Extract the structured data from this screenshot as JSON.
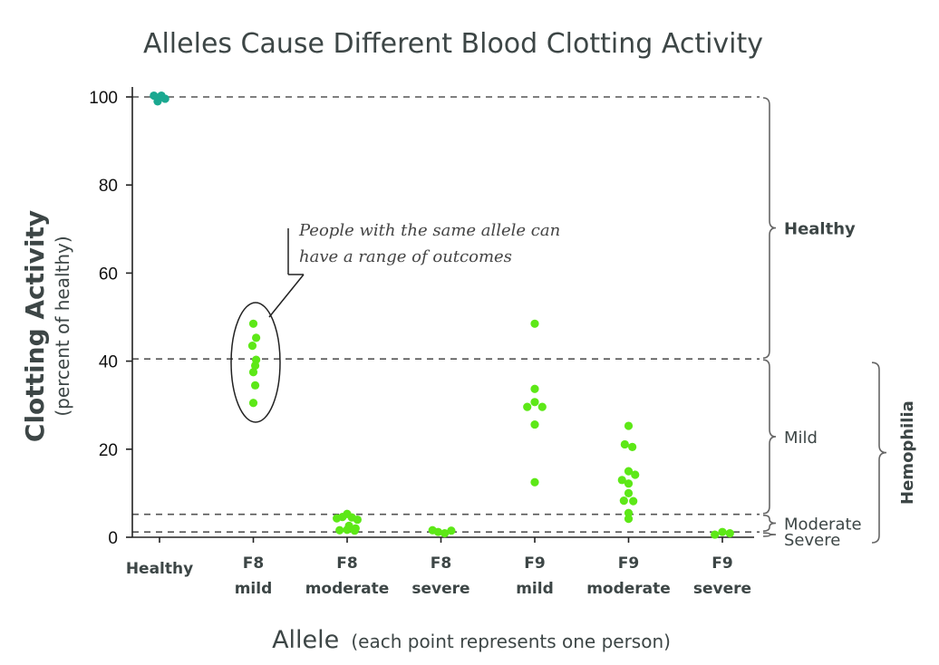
{
  "chart_data": {
    "type": "scatter",
    "title": "Alleles Cause Different Blood Clotting Activity",
    "ylabel": "Clotting Activity",
    "ylabel_sub": "(percent of healthy)",
    "xlabel": "Allele",
    "xlabel_sub": "(each point represents one person)",
    "ylim": [
      0,
      100
    ],
    "yticks": [
      0,
      20,
      40,
      60,
      80,
      100
    ],
    "grid": false,
    "categories": [
      {
        "line1": "Healthy",
        "line2": ""
      },
      {
        "line1": "F8",
        "line2": "mild"
      },
      {
        "line1": "F8",
        "line2": "moderate"
      },
      {
        "line1": "F8",
        "line2": "severe"
      },
      {
        "line1": "F9",
        "line2": "mild"
      },
      {
        "line1": "F9",
        "line2": "moderate"
      },
      {
        "line1": "F9",
        "line2": "severe"
      }
    ],
    "reference_lines": [
      100,
      40.5,
      5.2,
      1.2
    ],
    "bands": [
      {
        "label": "Healthy",
        "range": [
          40.5,
          100
        ],
        "bold": true
      },
      {
        "label": "Mild",
        "range": [
          5.2,
          40.5
        ],
        "bold": false
      },
      {
        "label": "Moderate",
        "range": [
          1.2,
          5.2
        ],
        "bold": false
      },
      {
        "label": "Severe",
        "range": [
          0,
          1.2
        ],
        "bold": false
      }
    ],
    "group_label": "Hemophilia",
    "group_range": [
      0,
      40.5
    ],
    "annotation": {
      "lines": [
        "People with the same allele can",
        "have a range of outcomes"
      ],
      "category_index": 1
    },
    "colors": {
      "healthy": "#1aa890",
      "affected": "#5de817",
      "axis": "#222222",
      "reference": "#555555"
    },
    "points": [
      {
        "cat": 0,
        "y": 100.3,
        "jitter": -0.06
      },
      {
        "cat": 0,
        "y": 99.0,
        "jitter": -0.02
      },
      {
        "cat": 0,
        "y": 100.3,
        "jitter": 0.02
      },
      {
        "cat": 0,
        "y": 99.6,
        "jitter": 0.06
      },
      {
        "cat": 1,
        "y": 48.5,
        "jitter": 0
      },
      {
        "cat": 1,
        "y": 45.3,
        "jitter": 0.03
      },
      {
        "cat": 1,
        "y": 43.5,
        "jitter": -0.01
      },
      {
        "cat": 1,
        "y": 40.3,
        "jitter": 0.03
      },
      {
        "cat": 1,
        "y": 39.0,
        "jitter": 0.02
      },
      {
        "cat": 1,
        "y": 37.5,
        "jitter": 0
      },
      {
        "cat": 1,
        "y": 34.5,
        "jitter": 0.02
      },
      {
        "cat": 1,
        "y": 30.5,
        "jitter": 0
      },
      {
        "cat": 2,
        "y": 5.3,
        "jitter": 0
      },
      {
        "cat": 2,
        "y": 4.6,
        "jitter": -0.05
      },
      {
        "cat": 2,
        "y": 4.5,
        "jitter": 0.05
      },
      {
        "cat": 2,
        "y": 4.0,
        "jitter": 0.11
      },
      {
        "cat": 2,
        "y": 4.3,
        "jitter": -0.11
      },
      {
        "cat": 2,
        "y": 2.6,
        "jitter": 0.02
      },
      {
        "cat": 2,
        "y": 2.0,
        "jitter": 0.09
      },
      {
        "cat": 2,
        "y": 1.6,
        "jitter": -0.08
      },
      {
        "cat": 2,
        "y": 1.7,
        "jitter": 0
      },
      {
        "cat": 2,
        "y": 1.5,
        "jitter": 0.08
      },
      {
        "cat": 3,
        "y": 1.6,
        "jitter": -0.09
      },
      {
        "cat": 3,
        "y": 1.2,
        "jitter": -0.03
      },
      {
        "cat": 3,
        "y": 0.9,
        "jitter": 0.04
      },
      {
        "cat": 3,
        "y": 1.5,
        "jitter": 0.11
      },
      {
        "cat": 4,
        "y": 48.5,
        "jitter": 0
      },
      {
        "cat": 4,
        "y": 33.7,
        "jitter": 0
      },
      {
        "cat": 4,
        "y": 30.7,
        "jitter": 0
      },
      {
        "cat": 4,
        "y": 29.6,
        "jitter": -0.08
      },
      {
        "cat": 4,
        "y": 29.6,
        "jitter": 0.08
      },
      {
        "cat": 4,
        "y": 25.6,
        "jitter": 0
      },
      {
        "cat": 4,
        "y": 12.5,
        "jitter": 0
      },
      {
        "cat": 5,
        "y": 25.3,
        "jitter": 0
      },
      {
        "cat": 5,
        "y": 21.1,
        "jitter": -0.04
      },
      {
        "cat": 5,
        "y": 20.5,
        "jitter": 0.04
      },
      {
        "cat": 5,
        "y": 15.0,
        "jitter": 0
      },
      {
        "cat": 5,
        "y": 14.2,
        "jitter": 0.07
      },
      {
        "cat": 5,
        "y": 13.0,
        "jitter": -0.07
      },
      {
        "cat": 5,
        "y": 12.2,
        "jitter": 0
      },
      {
        "cat": 5,
        "y": 10.0,
        "jitter": 0
      },
      {
        "cat": 5,
        "y": 8.3,
        "jitter": -0.05
      },
      {
        "cat": 5,
        "y": 8.2,
        "jitter": 0.05
      },
      {
        "cat": 5,
        "y": 5.5,
        "jitter": 0
      },
      {
        "cat": 5,
        "y": 4.2,
        "jitter": 0
      },
      {
        "cat": 6,
        "y": 0.6,
        "jitter": -0.08
      },
      {
        "cat": 6,
        "y": 1.2,
        "jitter": 0
      },
      {
        "cat": 6,
        "y": 0.9,
        "jitter": 0.08
      }
    ]
  }
}
